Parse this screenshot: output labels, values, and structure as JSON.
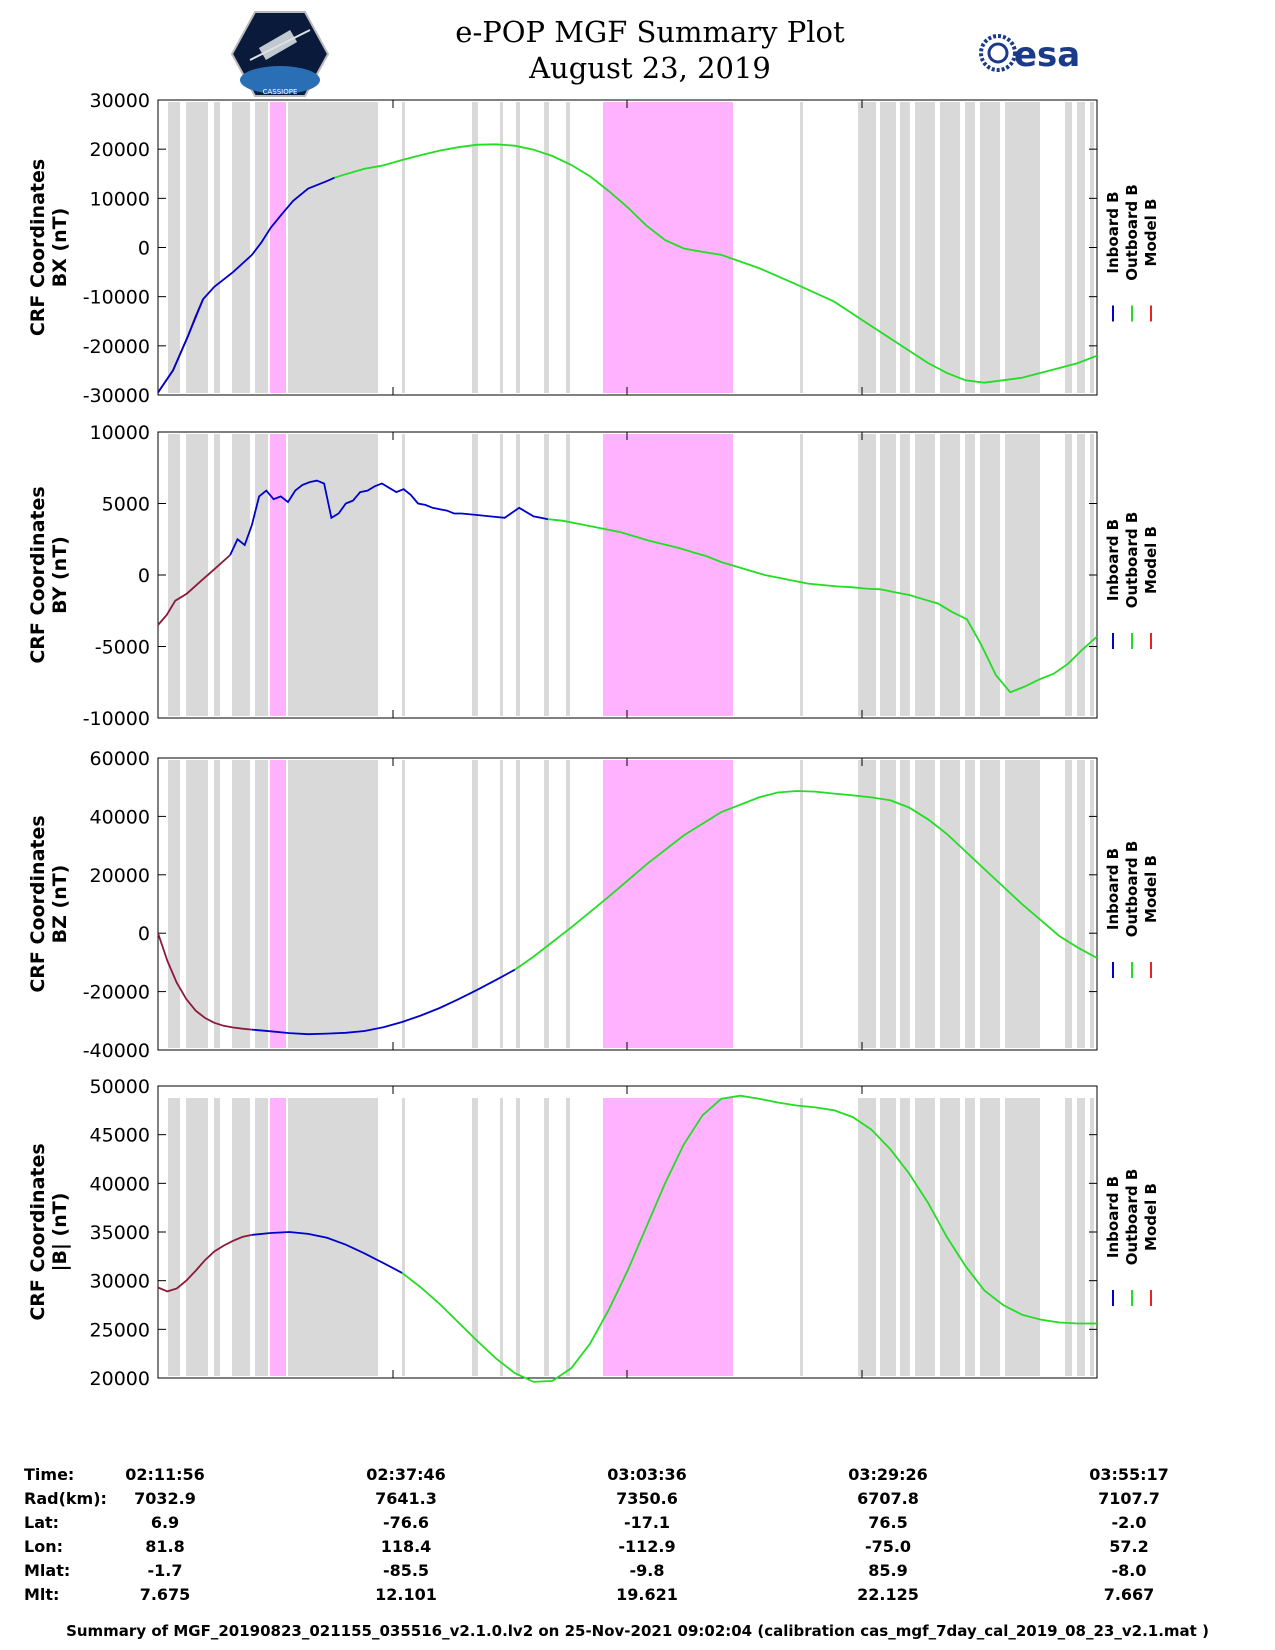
{
  "title": {
    "line1": "e-POP MGF Summary Plot",
    "line2": "August 23, 2019"
  },
  "logos": {
    "left": "cassiope-satellite-logo",
    "left_text": "CASSIOPE",
    "right_text": "esa"
  },
  "colors": {
    "inboard": "#0000cc",
    "outboard": "#22dd22",
    "model": "#ee2222",
    "overlap": "#8b1a3a",
    "gray_band": "#d9d9d9",
    "magenta_band": "#ffb3ff"
  },
  "chart_data": [
    {
      "type": "line",
      "ylabel": "CRF Coordinates\nBX (nT)",
      "ylabel_lines": [
        "CRF Coordinates",
        "BX (nT)"
      ],
      "ylim": [
        -30000,
        30000
      ],
      "yticks": [
        -30000,
        -20000,
        -10000,
        0,
        10000,
        20000,
        30000
      ],
      "ytick_labels": [
        "-30000",
        "-20000",
        "-10000",
        "0",
        "10000",
        "20000",
        "30000"
      ],
      "legend": [
        "Inboard B",
        "Outboard B",
        "Model B"
      ],
      "series": [
        {
          "name": "Model B",
          "x": [
            0.0,
            0.08,
            0.16,
            0.2,
            0.24
          ],
          "values": [
            -29500,
            -25000,
            -18000,
            -14000,
            -10500
          ]
        },
        {
          "name": "Inboard B",
          "x": [
            0.0,
            0.08,
            0.16,
            0.24,
            0.3,
            0.4,
            0.5,
            0.55,
            0.6,
            0.66,
            0.72,
            0.8,
            0.9,
            0.94
          ],
          "values": [
            -29500,
            -25000,
            -18000,
            -10500,
            -8000,
            -5000,
            -1500,
            1000,
            4000,
            6800,
            9500,
            12000,
            13500,
            14200
          ]
        },
        {
          "name": "Outboard B",
          "x": [
            0.94,
            1.0,
            1.1,
            1.2,
            1.3,
            1.4,
            1.5,
            1.6,
            1.7,
            1.8,
            1.9,
            2.0,
            2.1,
            2.2,
            2.3,
            2.4,
            2.5,
            2.6,
            2.7,
            2.8,
            2.9,
            3.0,
            3.2,
            3.4,
            3.6,
            3.8,
            3.9,
            4.0,
            4.1,
            4.2,
            4.3,
            4.4,
            4.6,
            4.8,
            4.9,
            5.0
          ],
          "values": [
            14200,
            14900,
            16000,
            16700,
            17800,
            18800,
            19700,
            20400,
            20900,
            21000,
            20700,
            19900,
            18600,
            16800,
            14500,
            11500,
            8200,
            4500,
            1500,
            -200,
            -900,
            -1500,
            -4200,
            -7500,
            -11000,
            -16000,
            -18500,
            -21000,
            -23500,
            -25500,
            -27000,
            -27500,
            -26500,
            -24500,
            -23500,
            -22000
          ]
        }
      ],
      "xlim": [
        0,
        5
      ]
    },
    {
      "type": "line",
      "ylabel": "CRF Coordinates\nBY (nT)",
      "ylabel_lines": [
        "CRF Coordinates",
        "BY (nT)"
      ],
      "ylim": [
        -10000,
        10000
      ],
      "yticks": [
        -10000,
        -5000,
        0,
        5000,
        10000
      ],
      "ytick_labels": [
        "-10000",
        "-5000",
        "0",
        "5000",
        "10000"
      ],
      "legend": [
        "Inboard B",
        "Outboard B",
        "Model B"
      ],
      "series": [
        {
          "name": "Model B",
          "x": [
            0.0,
            0.06,
            0.12,
            0.2,
            0.3,
            0.4,
            0.5
          ],
          "values": [
            -3500,
            -2800,
            -1800,
            -1300,
            -400,
            500,
            1400
          ]
        },
        {
          "name": "Inboard B",
          "x": [
            0.5,
            0.55,
            0.6,
            0.65,
            0.7,
            0.75,
            0.8,
            0.85,
            0.9,
            0.95,
            1.0,
            1.05,
            1.1,
            1.15,
            1.2,
            1.25,
            1.3,
            1.35,
            1.4,
            1.45,
            1.5,
            1.55,
            1.6,
            1.65,
            1.7,
            1.75,
            1.8,
            1.85,
            1.9,
            1.95,
            2.0,
            2.05,
            2.1,
            2.2,
            2.3,
            2.4,
            2.5,
            2.6,
            2.65,
            2.7
          ],
          "values": [
            1400,
            2500,
            2100,
            3500,
            5500,
            5900,
            5300,
            5500,
            5100,
            5900,
            6300,
            6500,
            6600,
            6400,
            4000,
            4300,
            5000,
            5200,
            5800,
            5900,
            6200,
            6400,
            6100,
            5800,
            6000,
            5600,
            5000,
            4900,
            4700,
            4600,
            4500,
            4300,
            4300,
            4200,
            4100,
            4000,
            4700,
            4100,
            4000,
            3900
          ]
        },
        {
          "name": "Outboard B",
          "x": [
            2.7,
            2.8,
            3.0,
            3.2,
            3.4,
            3.6,
            3.7,
            3.8,
            3.9,
            4.0,
            4.1,
            4.2,
            4.3,
            4.4,
            4.5,
            4.6,
            4.7,
            4.8,
            4.9,
            5.0,
            5.1,
            5.2,
            5.3,
            5.4,
            5.5,
            5.6,
            5.7,
            5.8,
            5.9,
            6.0,
            6.1,
            6.2,
            6.3,
            6.4,
            6.5
          ],
          "values": [
            3900,
            3800,
            3400,
            3000,
            2400,
            1900,
            1600,
            1300,
            900,
            600,
            300,
            0,
            -200,
            -400,
            -600,
            -700,
            -800,
            -850,
            -950,
            -1000,
            -1200,
            -1400,
            -1700,
            -2000,
            -2600,
            -3100,
            -4900,
            -7000,
            -8200,
            -7800,
            -7300,
            -6900,
            -6200,
            -5200,
            -4300
          ]
        }
      ],
      "xlim": [
        0,
        6.5
      ]
    },
    {
      "type": "line",
      "ylabel": "CRF Coordinates\nBZ (nT)",
      "ylabel_lines": [
        "CRF Coordinates",
        "BZ (nT)"
      ],
      "ylim": [
        -40000,
        60000
      ],
      "yticks": [
        -40000,
        -20000,
        0,
        20000,
        40000,
        60000
      ],
      "ytick_labels": [
        "-40000",
        "-20000",
        "0",
        "20000",
        "40000",
        "60000"
      ],
      "legend": [
        "Inboard B",
        "Outboard B",
        "Model B"
      ],
      "series": [
        {
          "name": "Model B",
          "x": [
            0.0,
            0.05,
            0.1,
            0.15,
            0.2,
            0.25,
            0.3,
            0.35,
            0.4,
            0.45,
            0.5
          ],
          "values": [
            0,
            -9500,
            -17000,
            -22500,
            -26500,
            -29000,
            -30700,
            -31700,
            -32300,
            -32700,
            -33000
          ]
        },
        {
          "name": "Inboard B",
          "x": [
            0.5,
            0.6,
            0.7,
            0.8,
            0.9,
            1.0,
            1.1,
            1.2,
            1.3,
            1.4,
            1.5,
            1.6,
            1.7,
            1.8,
            1.9
          ],
          "values": [
            -33000,
            -33600,
            -34200,
            -34600,
            -34400,
            -34100,
            -33500,
            -32200,
            -30400,
            -28200,
            -25600,
            -22600,
            -19400,
            -16000,
            -12500
          ]
        },
        {
          "name": "Outboard B",
          "x": [
            1.9,
            2.0,
            2.2,
            2.4,
            2.6,
            2.8,
            3.0,
            3.2,
            3.3,
            3.4,
            3.5,
            3.6,
            3.7,
            3.8,
            3.9,
            4.0,
            4.1,
            4.2,
            4.3,
            4.4,
            4.5,
            4.6,
            4.7,
            4.8,
            4.9,
            5.0
          ],
          "values": [
            -12500,
            -8000,
            2000,
            12500,
            23500,
            33500,
            41500,
            46500,
            48200,
            48700,
            48500,
            47800,
            47200,
            46500,
            45500,
            43000,
            39000,
            34000,
            28000,
            22000,
            16000,
            10000,
            4500,
            -1000,
            -5000,
            -8500
          ]
        }
      ],
      "xlim": [
        0,
        5
      ]
    },
    {
      "type": "line",
      "ylabel": "CRF Coordinates\n|B| (nT)",
      "ylabel_lines": [
        "CRF Coordinates",
        "|B| (nT)"
      ],
      "ylim": [
        20000,
        50000
      ],
      "yticks": [
        20000,
        25000,
        30000,
        35000,
        40000,
        45000,
        50000
      ],
      "ytick_labels": [
        "20000",
        "25000",
        "30000",
        "35000",
        "40000",
        "45000",
        "50000"
      ],
      "legend": [
        "Inboard B",
        "Outboard B",
        "Model B"
      ],
      "series": [
        {
          "name": "Model B",
          "x": [
            0.0,
            0.05,
            0.1,
            0.15,
            0.2,
            0.25,
            0.3,
            0.35,
            0.4,
            0.45,
            0.5
          ],
          "values": [
            29300,
            28900,
            29200,
            30000,
            31000,
            32100,
            33000,
            33600,
            34100,
            34500,
            34700
          ]
        },
        {
          "name": "Inboard B",
          "x": [
            0.5,
            0.6,
            0.7,
            0.8,
            0.9,
            1.0,
            1.1,
            1.2,
            1.3
          ],
          "values": [
            34700,
            34900,
            35000,
            34800,
            34400,
            33700,
            32800,
            31800,
            30800
          ]
        },
        {
          "name": "Outboard B",
          "x": [
            1.3,
            1.4,
            1.5,
            1.6,
            1.7,
            1.8,
            1.9,
            2.0,
            2.1,
            2.2,
            2.3,
            2.4,
            2.5,
            2.6,
            2.7,
            2.8,
            2.9,
            3.0,
            3.1,
            3.2,
            3.3,
            3.4,
            3.5,
            3.6,
            3.7,
            3.8,
            3.9,
            4.0,
            4.1,
            4.2,
            4.3,
            4.4,
            4.5,
            4.6,
            4.7,
            4.8,
            4.9,
            5.0
          ],
          "values": [
            30800,
            29300,
            27600,
            25700,
            23800,
            22000,
            20500,
            19600,
            19700,
            21000,
            23500,
            27000,
            31000,
            35500,
            40000,
            44000,
            47000,
            48700,
            49000,
            48700,
            48300,
            48000,
            47800,
            47500,
            46800,
            45500,
            43500,
            41000,
            38000,
            34500,
            31500,
            29000,
            27500,
            26500,
            26000,
            25700,
            25600,
            25600
          ]
        }
      ],
      "xlim": [
        0,
        5
      ]
    }
  ],
  "time_table": {
    "row_labels": [
      "Time:",
      "Rad(km):",
      "Lat:",
      "Lon:",
      "Mlat:",
      "Mlt:"
    ],
    "columns": [
      {
        "time": "02:11:56",
        "rad": "7032.9",
        "lat": "6.9",
        "lon": "81.8",
        "mlat": "-1.7",
        "mlt": "7.675"
      },
      {
        "time": "02:37:46",
        "rad": "7641.3",
        "lat": "-76.6",
        "lon": "118.4",
        "mlat": "-85.5",
        "mlt": "12.101"
      },
      {
        "time": "03:03:36",
        "rad": "7350.6",
        "lat": "-17.1",
        "lon": "-112.9",
        "mlat": "-9.8",
        "mlt": "19.621"
      },
      {
        "time": "03:29:26",
        "rad": "6707.8",
        "lat": "76.5",
        "lon": "-75.0",
        "mlat": "85.9",
        "mlt": "22.125"
      },
      {
        "time": "03:55:17",
        "rad": "7107.7",
        "lat": "-2.0",
        "lon": "57.2",
        "mlat": "-8.0",
        "mlt": "7.667"
      }
    ]
  },
  "summary_text": "Summary of MGF_20190823_021155_035516_v2.1.0.lv2 on 25-Nov-2021 09:02:04 (calibration cas_mgf_7day_cal_2019_08_23_v2.1.mat )"
}
